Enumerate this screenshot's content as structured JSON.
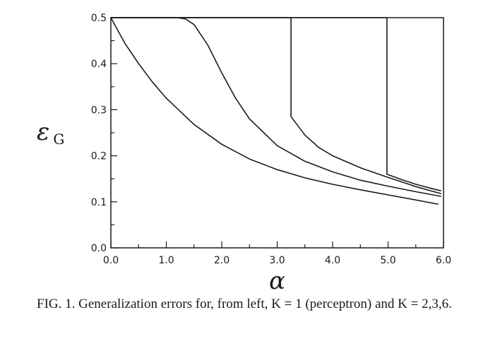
{
  "chart_data": {
    "type": "line",
    "title": "",
    "xlabel": "α",
    "ylabel": "ε_G",
    "ylabel_main": "ε",
    "ylabel_sub": "G",
    "xlim": [
      0.0,
      6.0
    ],
    "ylim": [
      0.0,
      0.5
    ],
    "x_ticks": [
      0.0,
      1.0,
      2.0,
      3.0,
      4.0,
      5.0,
      6.0
    ],
    "x_tick_labels": [
      "0.0",
      "1.0",
      "2.0",
      "3.0",
      "4.0",
      "5.0",
      "6.0"
    ],
    "y_ticks": [
      0.0,
      0.1,
      0.2,
      0.3,
      0.4,
      0.5
    ],
    "y_tick_labels": [
      "0.0",
      "0.1",
      "0.2",
      "0.3",
      "0.4",
      "0.5"
    ],
    "grid": false,
    "legend": "none",
    "line_color": "#1a1a1a",
    "series": [
      {
        "x": [
          0.0,
          0.25,
          0.5,
          0.75,
          1.0,
          1.5,
          2.0,
          2.5,
          3.0,
          3.5,
          4.0,
          4.5,
          5.0,
          5.5,
          5.9
        ],
        "y": [
          0.5,
          0.445,
          0.4,
          0.36,
          0.325,
          0.268,
          0.225,
          0.193,
          0.17,
          0.152,
          0.138,
          0.126,
          0.115,
          0.104,
          0.095
        ]
      },
      {
        "x": [
          0.0,
          1.2,
          1.35,
          1.5,
          1.75,
          2.0,
          2.25,
          2.5,
          3.0,
          3.5,
          4.0,
          4.5,
          5.0,
          5.5,
          5.95
        ],
        "y": [
          0.5,
          0.5,
          0.497,
          0.485,
          0.44,
          0.38,
          0.325,
          0.28,
          0.222,
          0.188,
          0.165,
          0.147,
          0.134,
          0.122,
          0.112
        ]
      },
      {
        "x": [
          0.0,
          3.25,
          3.25,
          3.5,
          3.75,
          4.0,
          4.5,
          5.0,
          5.5,
          5.95
        ],
        "y": [
          0.5,
          0.5,
          0.285,
          0.245,
          0.218,
          0.2,
          0.174,
          0.153,
          0.133,
          0.118
        ]
      },
      {
        "x": [
          0.0,
          4.98,
          4.98,
          5.25,
          5.5,
          5.75,
          5.95
        ],
        "y": [
          0.5,
          0.5,
          0.16,
          0.148,
          0.138,
          0.13,
          0.124
        ]
      }
    ]
  },
  "caption": "FIG. 1. Generalization errors for, from left, K = 1 (perceptron) and K = 2,3,6."
}
